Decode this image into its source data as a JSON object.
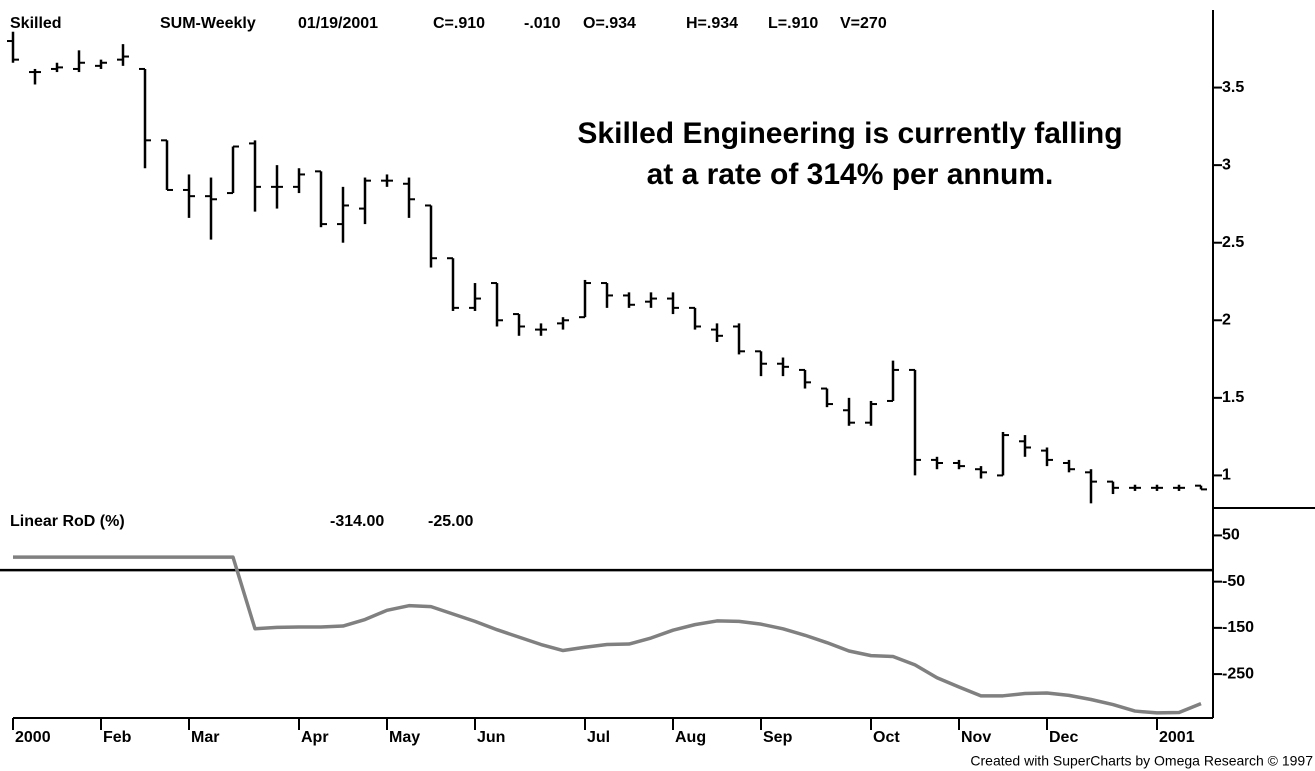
{
  "chart_data": [
    {
      "type": "ohlc",
      "header": [
        "Skilled",
        "SUM-Weekly",
        "01/19/2001",
        "C=.910",
        "-.010",
        "O=.934",
        "H=.934",
        "L=.910",
        "V=270"
      ],
      "annotation": [
        "Skilled Engineering is currently falling",
        "at a rate of 314% per annum."
      ],
      "color": "#000000",
      "open": [
        3.8,
        3.6,
        3.62,
        3.62,
        3.64,
        3.68,
        3.62,
        3.16,
        2.84,
        2.8,
        2.82,
        3.14,
        2.86,
        2.86,
        2.96,
        2.62,
        2.72,
        2.9,
        2.88,
        2.74,
        2.4,
        2.08,
        2.24,
        2.04,
        1.94,
        1.98,
        2.02,
        2.24,
        2.16,
        2.12,
        2.14,
        2.08,
        1.94,
        1.96,
        1.8,
        1.72,
        1.68,
        1.56,
        1.42,
        1.34,
        1.48,
        1.68,
        1.1,
        1.08,
        1.04,
        1.0,
        1.22,
        1.16,
        1.08,
        1.02,
        0.96,
        0.92,
        0.92,
        0.92,
        0.934
      ],
      "high": [
        3.86,
        3.62,
        3.66,
        3.74,
        3.68,
        3.78,
        3.62,
        3.16,
        2.94,
        2.92,
        3.12,
        3.16,
        3.0,
        2.98,
        2.96,
        2.86,
        2.92,
        2.94,
        2.92,
        2.74,
        2.4,
        2.24,
        2.24,
        2.04,
        1.98,
        2.02,
        2.26,
        2.24,
        2.18,
        2.18,
        2.18,
        2.08,
        1.98,
        1.98,
        1.8,
        1.76,
        1.68,
        1.56,
        1.5,
        1.48,
        1.74,
        1.68,
        1.12,
        1.1,
        1.06,
        1.28,
        1.26,
        1.18,
        1.1,
        1.04,
        0.96,
        0.94,
        0.94,
        0.94,
        0.934
      ],
      "low": [
        3.66,
        3.52,
        3.6,
        3.6,
        3.62,
        3.64,
        2.98,
        2.84,
        2.66,
        2.52,
        2.82,
        2.7,
        2.72,
        2.82,
        2.6,
        2.5,
        2.62,
        2.86,
        2.66,
        2.34,
        2.06,
        2.06,
        1.96,
        1.9,
        1.9,
        1.94,
        2.02,
        2.08,
        2.08,
        2.08,
        2.04,
        1.94,
        1.86,
        1.78,
        1.64,
        1.64,
        1.56,
        1.44,
        1.32,
        1.32,
        1.48,
        1.0,
        1.04,
        1.04,
        0.98,
        1.0,
        1.12,
        1.06,
        1.02,
        0.82,
        0.88,
        0.9,
        0.9,
        0.9,
        0.91
      ],
      "close": [
        3.68,
        3.6,
        3.63,
        3.66,
        3.66,
        3.7,
        3.16,
        2.84,
        2.8,
        2.78,
        3.12,
        2.86,
        2.86,
        2.94,
        2.62,
        2.74,
        2.9,
        2.9,
        2.78,
        2.4,
        2.08,
        2.14,
        2.0,
        1.96,
        1.94,
        2.0,
        2.24,
        2.16,
        2.1,
        2.14,
        2.08,
        1.96,
        1.9,
        1.8,
        1.72,
        1.7,
        1.6,
        1.46,
        1.34,
        1.46,
        1.68,
        1.1,
        1.08,
        1.06,
        1.02,
        1.26,
        1.18,
        1.1,
        1.04,
        0.96,
        0.92,
        0.92,
        0.92,
        0.92,
        0.91
      ],
      "ylim": [
        0.79,
        4.0
      ],
      "yticks": [
        1,
        1.5,
        2,
        2.5,
        3,
        3.5
      ]
    },
    {
      "type": "line",
      "title": "Linear RoD (%)",
      "color": "#808080",
      "categories": [
        "2000",
        null,
        null,
        null,
        "Feb",
        null,
        null,
        null,
        "Mar",
        null,
        null,
        null,
        null,
        "Apr",
        null,
        null,
        null,
        "May",
        null,
        null,
        null,
        "Jun",
        null,
        null,
        null,
        null,
        "Jul",
        null,
        null,
        null,
        "Aug",
        null,
        null,
        null,
        "Sep",
        null,
        null,
        null,
        null,
        "Oct",
        null,
        null,
        null,
        "Nov",
        null,
        null,
        null,
        "Dec",
        null,
        null,
        null,
        null,
        "2001",
        null,
        null
      ],
      "values": [
        3,
        3,
        3,
        3,
        3,
        3,
        3,
        3,
        3,
        3,
        3,
        -152,
        -149,
        -148,
        -148,
        -146,
        -132,
        -112,
        -102,
        -104,
        -120,
        -136,
        -154,
        -170,
        -186,
        -199,
        -192,
        -186,
        -185,
        -172,
        -155,
        -143,
        -135,
        -136,
        -142,
        -152,
        -166,
        -182,
        -200,
        -210,
        -212,
        -230,
        -258,
        -278,
        -297,
        -297,
        -292,
        -291,
        -296,
        -305,
        -316,
        -330,
        -334,
        -333,
        -314
      ],
      "value_labels": [
        null,
        null,
        null,
        null,
        null,
        null,
        null,
        null,
        null,
        null,
        null,
        null,
        null,
        null,
        null,
        null,
        null,
        null,
        null,
        null,
        null,
        null,
        null,
        null,
        null,
        null,
        null,
        null,
        null,
        null,
        null,
        null,
        null,
        null,
        null,
        null,
        null,
        null,
        null,
        null,
        null,
        null,
        null,
        null,
        null,
        null,
        null,
        null,
        null,
        null,
        null,
        null,
        null,
        null,
        "-314.00"
      ],
      "hlines": [
        {
          "value": -25,
          "label": "-25.00",
          "color": "#000000"
        }
      ],
      "ylim": [
        -345,
        105
      ],
      "yticks": [
        50,
        -50,
        -150,
        -250
      ]
    }
  ],
  "footer": "Created with SuperCharts by Omega Research © 1997"
}
